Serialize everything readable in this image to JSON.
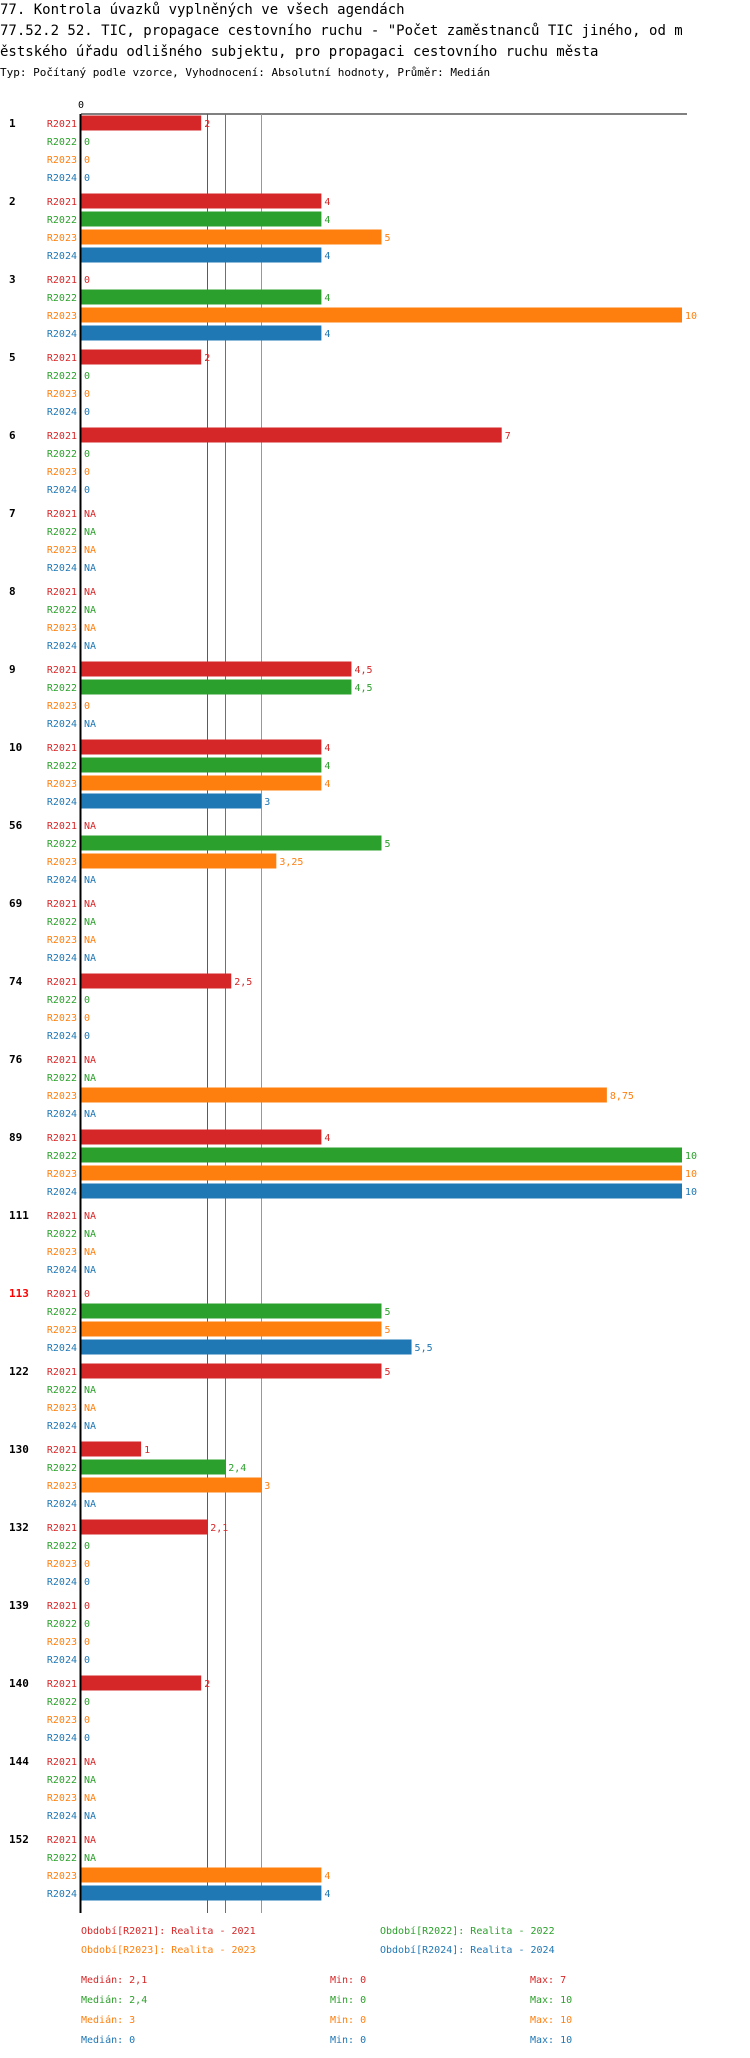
{
  "header": {
    "title_line1": "77. Kontrola úvazků vyplněných ve všech agendách",
    "title_line2": "77.52.2 52. TIC, propagace cestovního ruchu - \"Počet zaměstnanců TIC jiného, od m",
    "title_line3": "ěstského úřadu odlišného subjektu, pro propagaci cestovního ruchu města",
    "subtitle": "Typ: Počítaný podle vzorce, Vyhodnocení: Absolutní hodnoty, Průměr: Medián"
  },
  "colors": {
    "R2021": "#d62728",
    "R2022": "#2ca02c",
    "R2023": "#ff7f0e",
    "R2024": "#1f77b4",
    "highlight": "#ff0000",
    "axis": "#000000"
  },
  "chart_data": {
    "type": "bar",
    "orientation": "horizontal",
    "axis_zero_label": "0",
    "xlim": [
      0,
      10
    ],
    "series_names": [
      "R2021",
      "R2022",
      "R2023",
      "R2024"
    ],
    "groups": [
      {
        "label": "1",
        "highlight": false,
        "values": [
          2,
          0,
          0,
          0
        ],
        "labels": [
          "2",
          "0",
          "0",
          "0"
        ]
      },
      {
        "label": "2",
        "highlight": false,
        "values": [
          4,
          4,
          5,
          4
        ],
        "labels": [
          "4",
          "4",
          "5",
          "4"
        ]
      },
      {
        "label": "3",
        "highlight": false,
        "values": [
          0,
          4,
          10,
          4
        ],
        "labels": [
          "0",
          "4",
          "10",
          "4"
        ]
      },
      {
        "label": "5",
        "highlight": false,
        "values": [
          2,
          0,
          0,
          0
        ],
        "labels": [
          "2",
          "0",
          "0",
          "0"
        ]
      },
      {
        "label": "6",
        "highlight": false,
        "values": [
          7,
          0,
          0,
          0
        ],
        "labels": [
          "7",
          "0",
          "0",
          "0"
        ]
      },
      {
        "label": "7",
        "highlight": false,
        "values": [
          null,
          null,
          null,
          null
        ],
        "labels": [
          "NA",
          "NA",
          "NA",
          "NA"
        ]
      },
      {
        "label": "8",
        "highlight": false,
        "values": [
          null,
          null,
          null,
          null
        ],
        "labels": [
          "NA",
          "NA",
          "NA",
          "NA"
        ]
      },
      {
        "label": "9",
        "highlight": false,
        "values": [
          4.5,
          4.5,
          0,
          null
        ],
        "labels": [
          "4,5",
          "4,5",
          "0",
          "NA"
        ]
      },
      {
        "label": "10",
        "highlight": false,
        "values": [
          4,
          4,
          4,
          3
        ],
        "labels": [
          "4",
          "4",
          "4",
          "3"
        ]
      },
      {
        "label": "56",
        "highlight": false,
        "values": [
          null,
          5,
          3.25,
          null
        ],
        "labels": [
          "NA",
          "5",
          "3,25",
          "NA"
        ]
      },
      {
        "label": "69",
        "highlight": false,
        "values": [
          null,
          null,
          null,
          null
        ],
        "labels": [
          "NA",
          "NA",
          "NA",
          "NA"
        ]
      },
      {
        "label": "74",
        "highlight": false,
        "values": [
          2.5,
          0,
          0,
          0
        ],
        "labels": [
          "2,5",
          "0",
          "0",
          "0"
        ]
      },
      {
        "label": "76",
        "highlight": false,
        "values": [
          null,
          null,
          8.75,
          null
        ],
        "labels": [
          "NA",
          "NA",
          "8,75",
          "NA"
        ]
      },
      {
        "label": "89",
        "highlight": false,
        "values": [
          4,
          10,
          10,
          10
        ],
        "labels": [
          "4",
          "10",
          "10",
          "10"
        ]
      },
      {
        "label": "111",
        "highlight": false,
        "values": [
          null,
          null,
          null,
          null
        ],
        "labels": [
          "NA",
          "NA",
          "NA",
          "NA"
        ]
      },
      {
        "label": "113",
        "highlight": true,
        "values": [
          0,
          5,
          5,
          5.5
        ],
        "labels": [
          "0",
          "5",
          "5",
          "5,5"
        ]
      },
      {
        "label": "122",
        "highlight": false,
        "values": [
          5,
          null,
          null,
          null
        ],
        "labels": [
          "5",
          "NA",
          "NA",
          "NA"
        ]
      },
      {
        "label": "130",
        "highlight": false,
        "values": [
          1,
          2.4,
          3,
          null
        ],
        "labels": [
          "1",
          "2,4",
          "3",
          "NA"
        ]
      },
      {
        "label": "132",
        "highlight": false,
        "values": [
          2.1,
          0,
          0,
          0
        ],
        "labels": [
          "2,1",
          "0",
          "0",
          "0"
        ]
      },
      {
        "label": "139",
        "highlight": false,
        "values": [
          0,
          0,
          0,
          0
        ],
        "labels": [
          "0",
          "0",
          "0",
          "0"
        ]
      },
      {
        "label": "140",
        "highlight": false,
        "values": [
          2,
          0,
          0,
          0
        ],
        "labels": [
          "2",
          "0",
          "0",
          "0"
        ]
      },
      {
        "label": "144",
        "highlight": false,
        "values": [
          null,
          null,
          null,
          null
        ],
        "labels": [
          "NA",
          "NA",
          "NA",
          "NA"
        ]
      },
      {
        "label": "152",
        "highlight": false,
        "values": [
          null,
          null,
          4,
          4
        ],
        "labels": [
          "NA",
          "NA",
          "4",
          "4"
        ]
      }
    ],
    "reference_lines": [
      {
        "series": "R2021",
        "value": 2.1
      },
      {
        "series": "R2022",
        "value": 2.4
      },
      {
        "series": "R2023",
        "value": 3
      }
    ],
    "legend": [
      {
        "series": "R2021",
        "text": "Období[R2021]: Realita - 2021"
      },
      {
        "series": "R2022",
        "text": "Období[R2022]: Realita - 2022"
      },
      {
        "series": "R2023",
        "text": "Období[R2023]: Realita - 2023"
      },
      {
        "series": "R2024",
        "text": "Období[R2024]: Realita - 2024"
      }
    ],
    "stats": [
      {
        "series": "R2021",
        "median": "Medián: 2,1",
        "min": "Min: 0",
        "max": "Max: 7"
      },
      {
        "series": "R2022",
        "median": "Medián: 2,4",
        "min": "Min: 0",
        "max": "Max: 10"
      },
      {
        "series": "R2023",
        "median": "Medián: 3",
        "min": "Min: 0",
        "max": "Max: 10"
      },
      {
        "series": "R2024",
        "median": "Medián: 0",
        "min": "Min: 0",
        "max": "Max: 10"
      }
    ]
  }
}
